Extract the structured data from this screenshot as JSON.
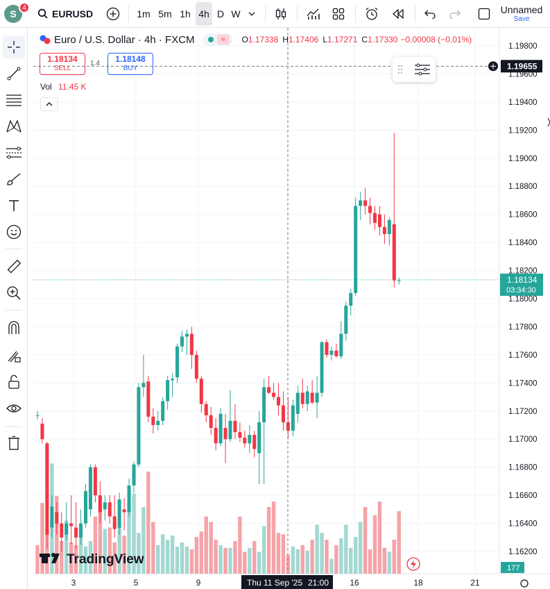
{
  "topbar": {
    "avatar_letter": "S",
    "notif_count": "4",
    "symbol": "EURUSD",
    "intervals": [
      "1m",
      "5m",
      "1h",
      "4h",
      "D",
      "W"
    ],
    "active_interval": "4h",
    "layout_name": "Unnamed",
    "save_label": "Save"
  },
  "legend": {
    "title": "Euro / U.S. Dollar · 4h · FXCM",
    "o_label": "O",
    "o_value": "1.17338",
    "h_label": "H",
    "h_value": "1.17406",
    "l_label": "L",
    "l_value": "1.17271",
    "c_label": "C",
    "c_value": "1.17330",
    "change": "−0.00008 (−0.01%)"
  },
  "trade": {
    "sell_price": "1.18134",
    "sell_label": "SELL",
    "spread": "1.4",
    "buy_price": "1.18148",
    "buy_label": "BUY"
  },
  "volume": {
    "label": "Vol",
    "value": "11.45 K"
  },
  "price_axis": {
    "ticks": [
      "1.19800",
      "1.19600",
      "1.19400",
      "1.19200",
      "1.19000",
      "1.18800",
      "1.18600",
      "1.18400",
      "1.18200",
      "1.18000",
      "1.17800",
      "1.17600",
      "1.17400",
      "1.17200",
      "1.17000",
      "1.16800",
      "1.16600",
      "1.16400",
      "1.16200"
    ],
    "crosshair_price": "1.19655",
    "last_price": "1.18134",
    "countdown": "03:34:30",
    "volume_badge": "177"
  },
  "time_axis": {
    "labels": [
      "3",
      "5",
      "9",
      "16",
      "18",
      "21"
    ],
    "crosshair_label": "Thu 11 Sep '25",
    "crosshair_time": "21:00"
  },
  "watermark": "TradingView",
  "colors": {
    "up": "#26a69a",
    "down": "#f23645",
    "up_vol": "#a3d8d1",
    "down_vol": "#f5a3a8",
    "accent": "#2962ff"
  },
  "chart_data": {
    "type": "candlestick",
    "ylim": [
      1.161,
      1.199
    ],
    "candles": [
      {
        "o": 1.1717,
        "h": 1.172,
        "l": 1.1714,
        "c": 1.1717
      },
      {
        "o": 1.1711,
        "h": 1.1715,
        "l": 1.1697,
        "c": 1.17
      },
      {
        "o": 1.1697,
        "h": 1.1698,
        "l": 1.1622,
        "c": 1.1632
      },
      {
        "o": 1.1637,
        "h": 1.166,
        "l": 1.163,
        "c": 1.1652
      },
      {
        "o": 1.1648,
        "h": 1.1655,
        "l": 1.1632,
        "c": 1.164
      },
      {
        "o": 1.164,
        "h": 1.1648,
        "l": 1.162,
        "c": 1.163
      },
      {
        "o": 1.1632,
        "h": 1.1655,
        "l": 1.1628,
        "c": 1.164
      },
      {
        "o": 1.164,
        "h": 1.166,
        "l": 1.1625,
        "c": 1.1638
      },
      {
        "o": 1.1637,
        "h": 1.1655,
        "l": 1.1622,
        "c": 1.163
      },
      {
        "o": 1.163,
        "h": 1.165,
        "l": 1.1625,
        "c": 1.164
      },
      {
        "o": 1.164,
        "h": 1.1668,
        "l": 1.1637,
        "c": 1.1663
      },
      {
        "o": 1.165,
        "h": 1.1682,
        "l": 1.1645,
        "c": 1.168
      },
      {
        "o": 1.168,
        "h": 1.1682,
        "l": 1.1655,
        "c": 1.166
      },
      {
        "o": 1.166,
        "h": 1.167,
        "l": 1.164,
        "c": 1.1648
      },
      {
        "o": 1.165,
        "h": 1.166,
        "l": 1.1642,
        "c": 1.1655
      },
      {
        "o": 1.1655,
        "h": 1.166,
        "l": 1.164,
        "c": 1.1645
      },
      {
        "o": 1.1645,
        "h": 1.166,
        "l": 1.163,
        "c": 1.1636
      },
      {
        "o": 1.1637,
        "h": 1.1662,
        "l": 1.1632,
        "c": 1.1657
      },
      {
        "o": 1.165,
        "h": 1.1658,
        "l": 1.1635,
        "c": 1.1648
      },
      {
        "o": 1.1648,
        "h": 1.1672,
        "l": 1.1645,
        "c": 1.1667
      },
      {
        "o": 1.1667,
        "h": 1.1684,
        "l": 1.1662,
        "c": 1.1682
      },
      {
        "o": 1.1682,
        "h": 1.174,
        "l": 1.168,
        "c": 1.1737
      },
      {
        "o": 1.1737,
        "h": 1.176,
        "l": 1.173,
        "c": 1.174
      },
      {
        "o": 1.1741,
        "h": 1.1745,
        "l": 1.1712,
        "c": 1.1716
      },
      {
        "o": 1.1716,
        "h": 1.1722,
        "l": 1.1704,
        "c": 1.171
      },
      {
        "o": 1.171,
        "h": 1.172,
        "l": 1.1706,
        "c": 1.1713
      },
      {
        "o": 1.1713,
        "h": 1.173,
        "l": 1.171,
        "c": 1.1727
      },
      {
        "o": 1.1727,
        "h": 1.1745,
        "l": 1.1721,
        "c": 1.1742
      },
      {
        "o": 1.1742,
        "h": 1.1747,
        "l": 1.173,
        "c": 1.1743
      },
      {
        "o": 1.1744,
        "h": 1.1768,
        "l": 1.174,
        "c": 1.1766
      },
      {
        "o": 1.1766,
        "h": 1.1777,
        "l": 1.1762,
        "c": 1.1773
      },
      {
        "o": 1.1773,
        "h": 1.1778,
        "l": 1.176,
        "c": 1.1775
      },
      {
        "o": 1.1775,
        "h": 1.178,
        "l": 1.175,
        "c": 1.176
      },
      {
        "o": 1.176,
        "h": 1.1763,
        "l": 1.174,
        "c": 1.1743
      },
      {
        "o": 1.1743,
        "h": 1.1745,
        "l": 1.1719,
        "c": 1.1725
      },
      {
        "o": 1.1725,
        "h": 1.1727,
        "l": 1.1712,
        "c": 1.1717
      },
      {
        "o": 1.1717,
        "h": 1.1723,
        "l": 1.1703,
        "c": 1.1708
      },
      {
        "o": 1.1708,
        "h": 1.1715,
        "l": 1.1692,
        "c": 1.1697
      },
      {
        "o": 1.1697,
        "h": 1.1722,
        "l": 1.1695,
        "c": 1.1718
      },
      {
        "o": 1.1708,
        "h": 1.1718,
        "l": 1.1683,
        "c": 1.17
      },
      {
        "o": 1.17,
        "h": 1.1735,
        "l": 1.1698,
        "c": 1.1713
      },
      {
        "o": 1.1713,
        "h": 1.1725,
        "l": 1.17,
        "c": 1.1705
      },
      {
        "o": 1.1705,
        "h": 1.1712,
        "l": 1.1698,
        "c": 1.1701
      },
      {
        "o": 1.1701,
        "h": 1.1706,
        "l": 1.1694,
        "c": 1.1697
      },
      {
        "o": 1.1697,
        "h": 1.171,
        "l": 1.169,
        "c": 1.1703
      },
      {
        "o": 1.1703,
        "h": 1.1706,
        "l": 1.1687,
        "c": 1.1693
      },
      {
        "o": 1.169,
        "h": 1.172,
        "l": 1.1668,
        "c": 1.1712
      },
      {
        "o": 1.1712,
        "h": 1.1743,
        "l": 1.1668,
        "c": 1.1737
      },
      {
        "o": 1.1737,
        "h": 1.1745,
        "l": 1.1732,
        "c": 1.1733
      },
      {
        "o": 1.1733,
        "h": 1.174,
        "l": 1.1728,
        "c": 1.173
      },
      {
        "o": 1.173,
        "h": 1.174,
        "l": 1.1717,
        "c": 1.1724
      },
      {
        "o": 1.1724,
        "h": 1.1734,
        "l": 1.1706,
        "c": 1.1712
      },
      {
        "o": 1.1712,
        "h": 1.173,
        "l": 1.17,
        "c": 1.1706
      },
      {
        "o": 1.1706,
        "h": 1.1728,
        "l": 1.1702,
        "c": 1.1724
      },
      {
        "o": 1.1718,
        "h": 1.1738,
        "l": 1.1712,
        "c": 1.1733
      },
      {
        "o": 1.1733,
        "h": 1.1743,
        "l": 1.1722,
        "c": 1.1725
      },
      {
        "o": 1.1725,
        "h": 1.1738,
        "l": 1.172,
        "c": 1.1734
      },
      {
        "o": 1.1733,
        "h": 1.1742,
        "l": 1.1725,
        "c": 1.1726
      },
      {
        "o": 1.1726,
        "h": 1.1745,
        "l": 1.1715,
        "c": 1.1733
      },
      {
        "o": 1.1733,
        "h": 1.177,
        "l": 1.173,
        "c": 1.1769
      },
      {
        "o": 1.1769,
        "h": 1.1771,
        "l": 1.1758,
        "c": 1.176
      },
      {
        "o": 1.176,
        "h": 1.1766,
        "l": 1.1756,
        "c": 1.1763
      },
      {
        "o": 1.1763,
        "h": 1.1768,
        "l": 1.1758,
        "c": 1.1759
      },
      {
        "o": 1.1759,
        "h": 1.1784,
        "l": 1.1757,
        "c": 1.1775
      },
      {
        "o": 1.1775,
        "h": 1.1798,
        "l": 1.177,
        "c": 1.1795
      },
      {
        "o": 1.1795,
        "h": 1.1807,
        "l": 1.1788,
        "c": 1.1804
      },
      {
        "o": 1.1804,
        "h": 1.1872,
        "l": 1.1802,
        "c": 1.1866
      },
      {
        "o": 1.1866,
        "h": 1.1876,
        "l": 1.1856,
        "c": 1.187
      },
      {
        "o": 1.187,
        "h": 1.1879,
        "l": 1.186,
        "c": 1.1866
      },
      {
        "o": 1.1866,
        "h": 1.1872,
        "l": 1.1853,
        "c": 1.1861
      },
      {
        "o": 1.1861,
        "h": 1.1866,
        "l": 1.1849,
        "c": 1.1854
      },
      {
        "o": 1.186,
        "h": 1.1866,
        "l": 1.1845,
        "c": 1.1851
      },
      {
        "o": 1.1851,
        "h": 1.186,
        "l": 1.1839,
        "c": 1.1846
      },
      {
        "o": 1.1846,
        "h": 1.1858,
        "l": 1.1838,
        "c": 1.1856
      },
      {
        "o": 1.1853,
        "h": 1.1918,
        "l": 1.1808,
        "c": 1.1813
      },
      {
        "o": 1.1813,
        "h": 1.1815,
        "l": 1.181,
        "c": 1.1813
      }
    ],
    "volume_max": 10000,
    "volumes": [
      2100,
      5200,
      3300,
      8100,
      5700,
      2400,
      3900,
      2300,
      2100,
      3300,
      2000,
      2400,
      4200,
      5700,
      3300,
      3400,
      2300,
      3500,
      2800,
      5200,
      5900,
      3000,
      4900,
      7500,
      3800,
      2100,
      2900,
      2500,
      2800,
      2000,
      2300,
      2000,
      1800,
      2700,
      3100,
      4200,
      3800,
      2500,
      2100,
      1900,
      1900,
      2400,
      4200,
      1600,
      1900,
      2400,
      1600,
      3500,
      4900,
      5300,
      3000,
      2900,
      1400,
      2000,
      1800,
      2100,
      1700,
      2500,
      3600,
      3000,
      2500,
      1100,
      2100,
      2600,
      3600,
      1900,
      2700,
      3800,
      4900,
      1800,
      4300,
      5300,
      1900,
      1600,
      2500,
      4600
    ],
    "vol_up": [
      false,
      false,
      false,
      true,
      false,
      false,
      true,
      false,
      false,
      true,
      true,
      true,
      false,
      false,
      true,
      false,
      false,
      true,
      false,
      true,
      true,
      true,
      true,
      false,
      false,
      true,
      true,
      true,
      true,
      true,
      true,
      true,
      false,
      false,
      false,
      false,
      false,
      false,
      true,
      false,
      true,
      false,
      false,
      false,
      true,
      false,
      true,
      true,
      false,
      false,
      false,
      false,
      false,
      true,
      true,
      false,
      true,
      false,
      true,
      true,
      false,
      true,
      false,
      true,
      true,
      true,
      true,
      true,
      false,
      false,
      false,
      false,
      false,
      true,
      false,
      false
    ]
  }
}
